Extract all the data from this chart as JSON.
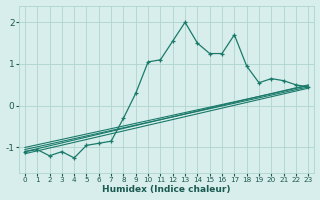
{
  "xlabel": "Humidex (Indice chaleur)",
  "bg_color": "#d8eeec",
  "grid_color": "#b0d4cf",
  "line_color": "#1a7a6a",
  "xlim": [
    -0.5,
    23.5
  ],
  "ylim": [
    -1.6,
    2.4
  ],
  "yticks": [
    -1,
    0,
    1,
    2
  ],
  "xticks": [
    0,
    1,
    2,
    3,
    4,
    5,
    6,
    7,
    8,
    9,
    10,
    11,
    12,
    13,
    14,
    15,
    16,
    17,
    18,
    19,
    20,
    21,
    22,
    23
  ],
  "jagged_x": [
    0,
    1,
    2,
    3,
    4,
    5,
    6,
    7,
    8,
    9,
    10,
    11,
    12,
    13,
    14,
    15,
    16,
    17,
    18,
    19,
    20,
    21,
    22,
    23
  ],
  "jagged_y": [
    -1.1,
    -1.05,
    -1.2,
    -1.1,
    -1.25,
    -0.95,
    -0.9,
    -0.85,
    -0.3,
    0.3,
    1.05,
    1.1,
    1.55,
    2.0,
    1.5,
    1.25,
    1.25,
    1.7,
    0.95,
    0.55,
    0.65,
    0.6,
    0.5,
    0.45
  ],
  "straight_lines": [
    {
      "x": [
        0,
        23
      ],
      "y": [
        -1.1,
        0.5
      ]
    },
    {
      "x": [
        0,
        23
      ],
      "y": [
        -1.05,
        0.45
      ]
    },
    {
      "x": [
        0,
        23
      ],
      "y": [
        -1.15,
        0.42
      ]
    },
    {
      "x": [
        0,
        23
      ],
      "y": [
        -1.0,
        0.48
      ]
    }
  ]
}
